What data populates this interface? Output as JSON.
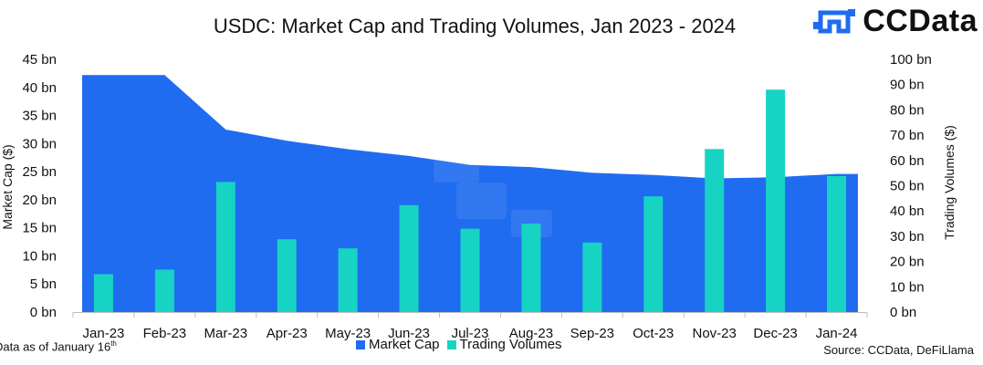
{
  "chart_data": {
    "type": "bar+area",
    "title": "USDC: Market Cap and Trading Volumes, Jan 2023 - 2024",
    "categories": [
      "Jan-23",
      "Feb-23",
      "Mar-23",
      "Apr-23",
      "May-23",
      "Jun-23",
      "Jul-23",
      "Aug-23",
      "Sep-23",
      "Oct-23",
      "Nov-23",
      "Dec-23",
      "Jan-24"
    ],
    "series": [
      {
        "name": "Market Cap",
        "type": "area",
        "axis": "left",
        "color": "#1f6cf0",
        "values": [
          42.2,
          42.2,
          32.5,
          30.5,
          29.0,
          27.8,
          26.2,
          25.8,
          24.8,
          24.4,
          23.8,
          24.0,
          24.6
        ]
      },
      {
        "name": "Trading Volumes",
        "type": "bar",
        "axis": "right",
        "color": "#17d3c3",
        "values": [
          15.0,
          16.8,
          51.5,
          28.8,
          25.2,
          42.3,
          33.0,
          35.0,
          27.5,
          45.8,
          64.5,
          88.0,
          53.8
        ]
      }
    ],
    "left_axis": {
      "label": "Market Cap ($)",
      "min": 0,
      "max": 45,
      "step": 5,
      "ticks": [
        "0 bn",
        "5 bn",
        "10 bn",
        "15 bn",
        "20 bn",
        "25 bn",
        "30 bn",
        "35 bn",
        "40 bn",
        "45 bn"
      ]
    },
    "right_axis": {
      "label": "Trading Volumes ($)",
      "min": 0,
      "max": 100,
      "step": 10,
      "ticks": [
        "0 bn",
        "10 bn",
        "20 bn",
        "30 bn",
        "40 bn",
        "50 bn",
        "60 bn",
        "70 bn",
        "80 bn",
        "90 bn",
        "100 bn"
      ]
    },
    "legend": [
      "Market Cap",
      "Trading Volumes"
    ],
    "legend_position": "bottom-center",
    "grid": false
  },
  "branding": {
    "logo_text": "CCData",
    "logo_color": "#1f6cf0"
  },
  "footnotes": {
    "data_as_of": "Data as of January 16",
    "data_as_of_sup": "th",
    "source": "Source: CCData, DeFiLlama"
  }
}
